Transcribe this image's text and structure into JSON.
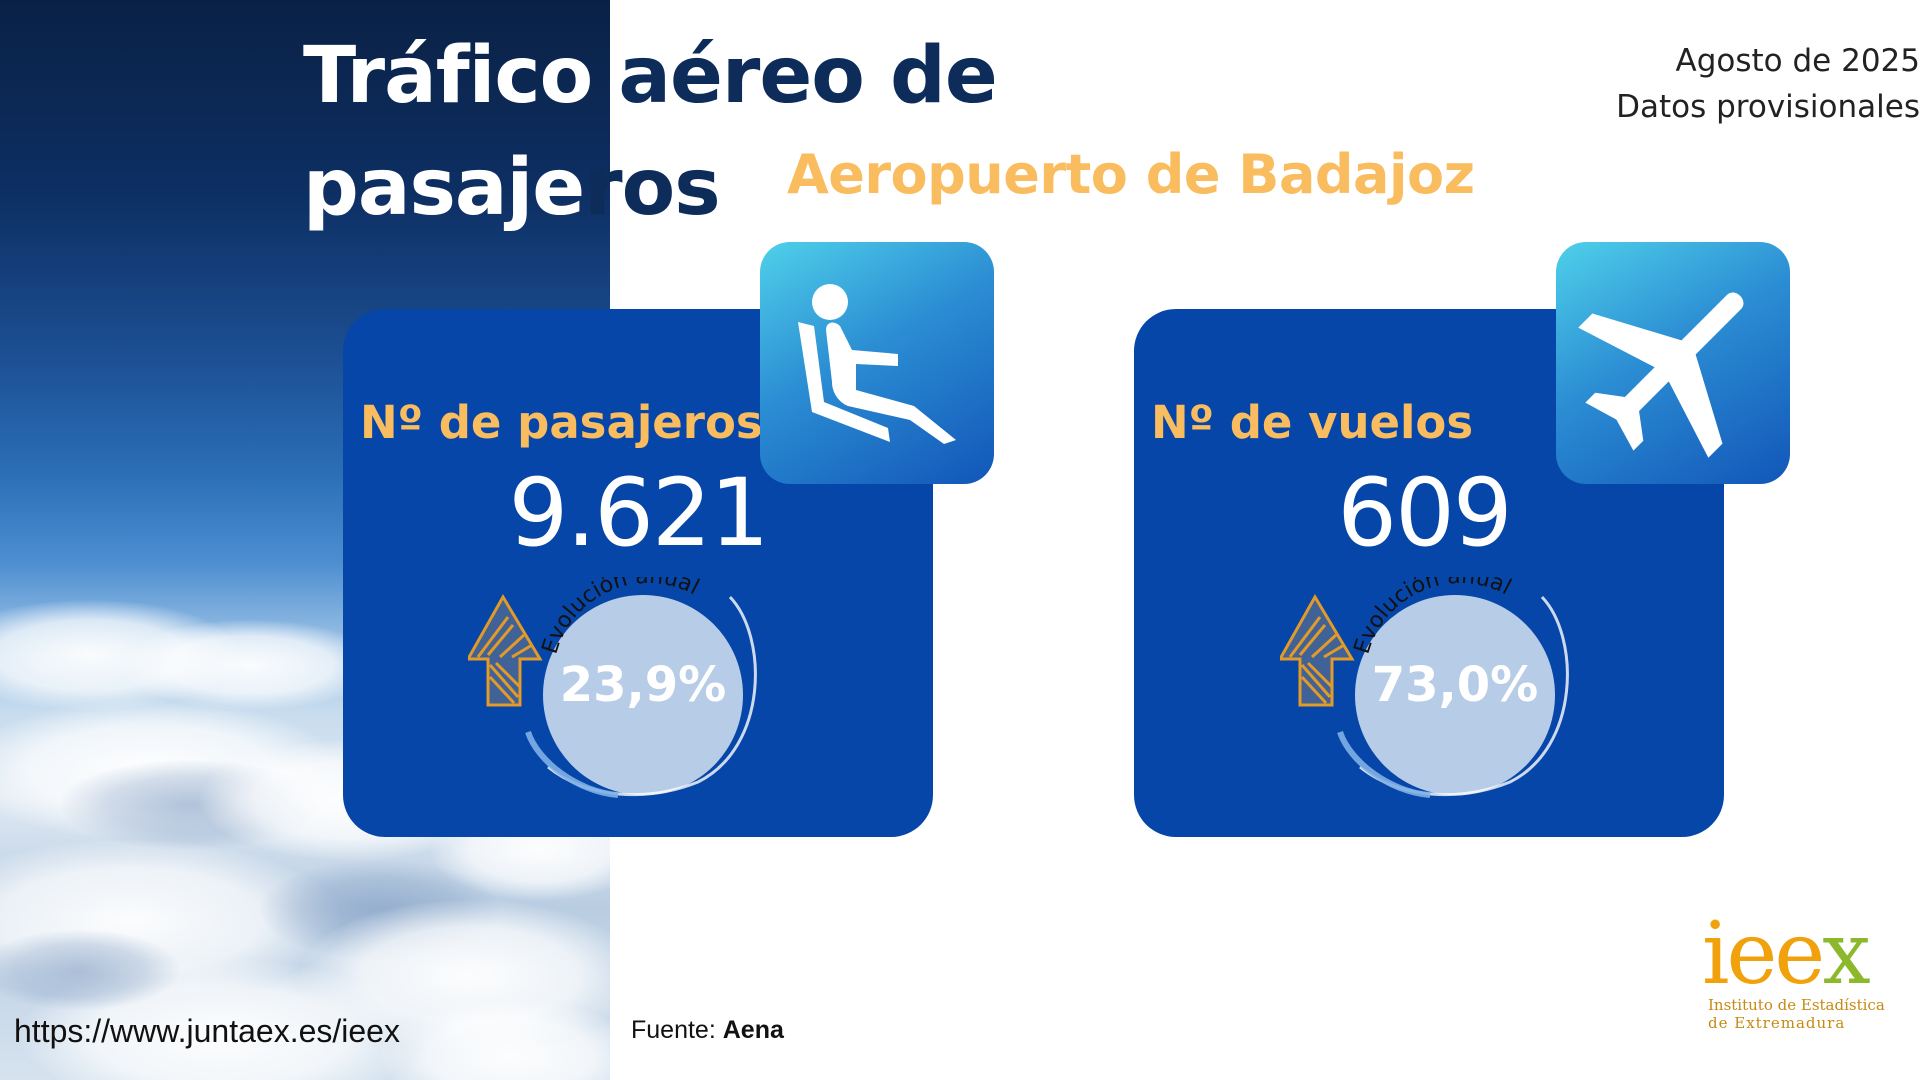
{
  "title": {
    "line1_white": "Tráfico ",
    "line1_dark": "aéreo de",
    "line2_white": "pasaje",
    "line2_dark": "ros"
  },
  "subtitle": "Aeropuerto de Badajoz",
  "date": {
    "period": "Agosto de 2025",
    "status": "Datos provisionales"
  },
  "cards": [
    {
      "label": "Nº de pasajeros",
      "value": "9.621",
      "evolution_label": "Evolución anual",
      "evolution_value": "23,9%",
      "trend": "up",
      "icon": "seated-passenger-icon"
    },
    {
      "label": "Nº de vuelos",
      "value": "609",
      "evolution_label": "Evolución anual",
      "evolution_value": "73,0%",
      "trend": "up",
      "icon": "airplane-icon"
    }
  ],
  "footer": {
    "url": "https://www.juntaex.es/ieex",
    "source_label": "Fuente: ",
    "source_name": "Aena"
  },
  "logo": {
    "word_orange": "iee",
    "word_green": "x",
    "line1": "Instituto de Estadística",
    "line2": "de Extremadura"
  },
  "colors": {
    "card_blue": "#0546a8",
    "accent_orange": "#f9bc5e",
    "title_dark": "#0d2c5a",
    "arrow_orange": "#e29a28",
    "circle_light": "#b7cce6"
  }
}
